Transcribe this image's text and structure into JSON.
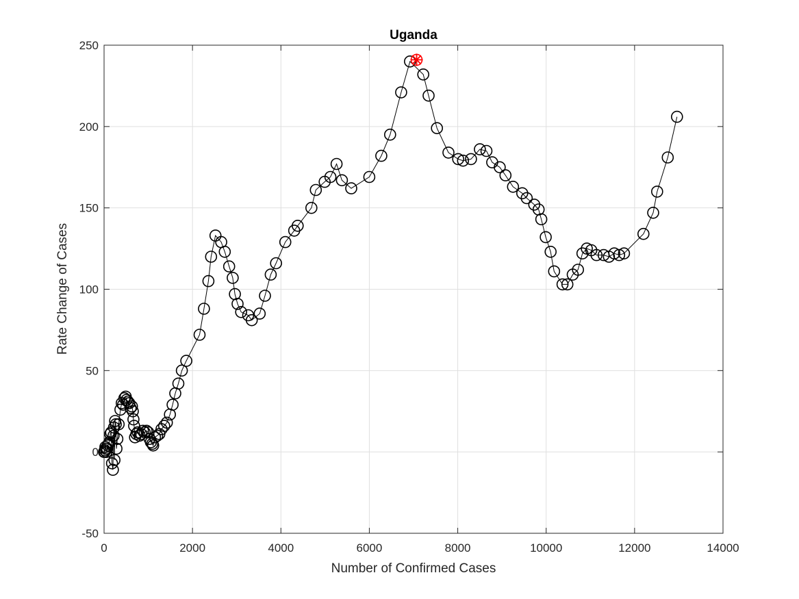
{
  "chart_data": {
    "type": "scatter",
    "title": "Uganda",
    "xlabel": "Number of Confirmed Cases",
    "ylabel": "Rate Change of Cases",
    "xlim": [
      0,
      14000
    ],
    "ylim": [
      -50,
      250
    ],
    "xticks": [
      0,
      2000,
      4000,
      6000,
      8000,
      10000,
      12000,
      14000
    ],
    "yticks": [
      -50,
      0,
      50,
      100,
      150,
      200,
      250
    ],
    "xtick_labels": [
      "0",
      "2000",
      "4000",
      "6000",
      "8000",
      "10000",
      "12000",
      "14000"
    ],
    "ytick_labels": [
      "-50",
      "0",
      "50",
      "100",
      "150",
      "200",
      "250"
    ],
    "grid": true,
    "series": [
      {
        "marker": "circle",
        "line": true,
        "color": "#000000",
        "x": [
          0,
          10,
          20,
          30,
          40,
          55,
          70,
          85,
          100,
          120,
          140,
          160,
          180,
          200,
          215,
          225,
          235,
          250,
          265,
          280,
          300,
          330,
          370,
          400,
          430,
          460,
          490,
          510,
          540,
          570,
          600,
          630,
          650,
          665,
          680,
          700,
          730,
          760,
          800,
          840,
          880,
          920,
          960,
          1000,
          1030,
          1060,
          1090,
          1110,
          1150,
          1200,
          1250,
          1300,
          1360,
          1420,
          1490,
          1550,
          1610,
          1680,
          1760,
          1860,
          2160,
          2260,
          2360,
          2420,
          2520,
          2650,
          2730,
          2830,
          2910,
          2960,
          3020,
          3100,
          3260,
          3340,
          3520,
          3640,
          3770,
          3890,
          4100,
          4300,
          4380,
          4690,
          4790,
          4990,
          5120,
          5260,
          5380,
          5590,
          6000,
          6270,
          6470,
          6720,
          6920,
          7220,
          7340,
          7530,
          7790,
          8010,
          8120,
          8300,
          8500,
          8650,
          8780,
          8950,
          9080,
          9250,
          9460,
          9560,
          9730,
          9830,
          9890,
          9990,
          10100,
          10180,
          10370,
          10480,
          10600,
          10720,
          10820,
          10920,
          11020,
          11140,
          11300,
          11420,
          11540,
          11650,
          11760,
          12200,
          12420,
          12510,
          12750,
          12960
        ],
        "y": [
          0,
          0,
          1,
          3,
          2,
          0,
          2,
          4,
          5,
          6,
          11,
          12,
          -7,
          -11,
          10,
          15,
          -5,
          19,
          17,
          2,
          8,
          17,
          26,
          30,
          29,
          33,
          34,
          32,
          31,
          30,
          27,
          28,
          25,
          20,
          16,
          9,
          11,
          12,
          10,
          11,
          13,
          12,
          13,
          12,
          8,
          6,
          5,
          4,
          9,
          10,
          11,
          14,
          16,
          18,
          23,
          29,
          36,
          42,
          50,
          56,
          72,
          88,
          105,
          120,
          133,
          129,
          123,
          114,
          107,
          97,
          91,
          86,
          84,
          81,
          85,
          96,
          109,
          116,
          129,
          136,
          139,
          150,
          161,
          166,
          169,
          177,
          167,
          162,
          169,
          182,
          195,
          221,
          240,
          232,
          219,
          199,
          184,
          180,
          179,
          180,
          186,
          185,
          178,
          175,
          170,
          163,
          159,
          156,
          152,
          149,
          143,
          132,
          123,
          111,
          103,
          103,
          109,
          112,
          122,
          125,
          124,
          121,
          121,
          120,
          122,
          121,
          122,
          134,
          147,
          160,
          181,
          206
        ]
      }
    ],
    "highlight": {
      "x": 7070,
      "y": 241,
      "marker": "star",
      "color": "#ff0000"
    }
  }
}
